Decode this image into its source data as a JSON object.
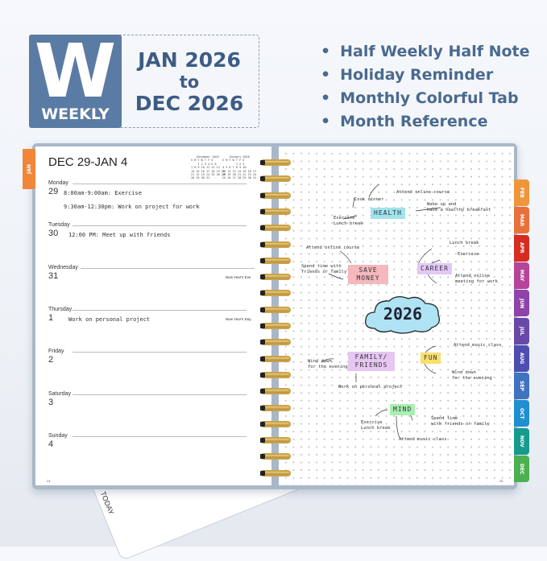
{
  "badge": {
    "letter": "W",
    "label": "WEEKLY",
    "color": "#5a7ba3"
  },
  "range": {
    "start": "JAN 2026",
    "to": "to",
    "end": "DEC 2026"
  },
  "features": [
    "Half Weekly Half Note",
    "Holiday Reminder",
    "Monthly Colorful Tab",
    "Month Reference"
  ],
  "left_page": {
    "week_title": "DEC 29-JAN 4",
    "mini_calendars": [
      {
        "title": "December 2025",
        "header": "S M T W T F S",
        "rows": [
          "    1 2 3 4 5 6",
          "7 8 9 10 11 12 13",
          "14 15 16 17 18 19 20",
          "21 22 23 24 25 26 27",
          "28 29 30 31"
        ]
      },
      {
        "title": "January 2026",
        "header": "S M T W T F S",
        "rows": [
          "        1 2 3",
          "4 5 6 7 8 9 10",
          "11 12 13 14 15 16 17",
          "18 19 20 21 22 23 24",
          "25 26 27 28 29 30 31"
        ]
      }
    ],
    "days": [
      {
        "name": "Monday",
        "num": "29",
        "entries": [
          "8:00am-9:00am: Exercise",
          "9:30am-12:30pm: Work on project for work"
        ],
        "note": ""
      },
      {
        "name": "Tuesday",
        "num": "30",
        "entries": [
          "12:00 PM: Meet up with friends"
        ],
        "note": ""
      },
      {
        "name": "Wednesday",
        "num": "31",
        "entries": [],
        "note": "New Year's Eve"
      },
      {
        "name": "Thursday",
        "num": "1",
        "entries": [
          "Work on personal project"
        ],
        "note": "New Year's Day"
      },
      {
        "name": "Friday",
        "num": "2",
        "entries": [],
        "note": ""
      },
      {
        "name": "Saturday",
        "num": "3",
        "entries": [],
        "note": ""
      },
      {
        "name": "Sunday",
        "num": "4",
        "entries": [],
        "note": ""
      }
    ],
    "page_number": "24"
  },
  "right_page": {
    "center": "2026",
    "nodes": {
      "health": {
        "label": "HEALTH",
        "color": "#9fe3ee",
        "items": [
          "Cook dinner",
          "Attend online course",
          "Wake up and\nhave a healthy breakfast",
          "Exercise\nLunch break"
        ]
      },
      "save_money": {
        "label": "SAVE\nMONEY",
        "color": "#f5b8bd",
        "items": [
          "Attend online course",
          "Spend time with\nfriends or family"
        ]
      },
      "career": {
        "label": "CAREER",
        "color": "#e2c8f5",
        "items": [
          "Lunch break",
          "Exercise",
          "Attend online\nmeeting for work"
        ]
      },
      "family": {
        "label": "FAMILY/\nFRIENDS",
        "color": "#e6c6f2",
        "items": [
          "Wind down\nfor the evening",
          "Work on personal project"
        ]
      },
      "fun": {
        "label": "FUN",
        "color": "#f8df6e",
        "items": [
          "Attend music class",
          "Wind down\nfor the evening"
        ]
      },
      "mind": {
        "label": "MIND",
        "color": "#a8efb2",
        "items": [
          "Exercise\nLunch break",
          "Spend time\nwith friends or family",
          "Attend music class"
        ]
      }
    },
    "page_number": "25"
  },
  "tabs": [
    {
      "label": "JAN",
      "color": "#f0863a"
    },
    {
      "label": "FEB",
      "color": "#f0963a"
    },
    {
      "label": "MAR",
      "color": "#e8703a"
    },
    {
      "label": "APR",
      "color": "#d62d20"
    },
    {
      "label": "MAY",
      "color": "#b5449a"
    },
    {
      "label": "JUN",
      "color": "#8e44a8"
    },
    {
      "label": "JUL",
      "color": "#6a48a8"
    },
    {
      "label": "AUG",
      "color": "#4d4fb0"
    },
    {
      "label": "SEP",
      "color": "#3f73c0"
    },
    {
      "label": "OCT",
      "color": "#1f8fd0"
    },
    {
      "label": "NOV",
      "color": "#179a8e"
    },
    {
      "label": "DEC",
      "color": "#4caf50"
    }
  ],
  "bookmark": {
    "label": "TODAY"
  }
}
